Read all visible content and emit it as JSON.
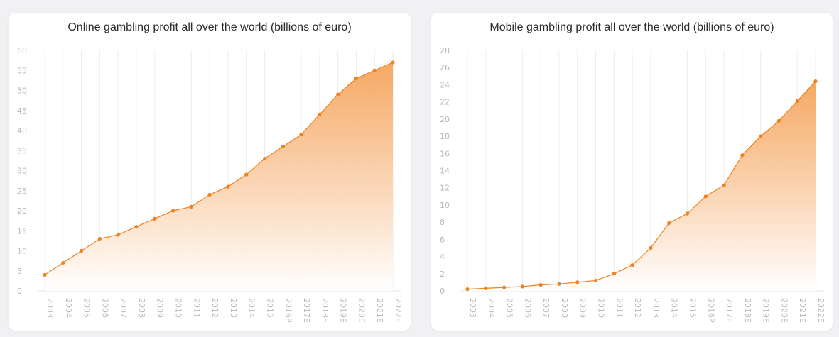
{
  "colors": {
    "accent": "#f0821e",
    "fill_top": "#f5a45c",
    "fill_bottom": "#ffffff"
  },
  "chart_data": [
    {
      "type": "area",
      "title": "Online gambling profit all over the world (billions of euro)",
      "xlabel": "",
      "ylabel": "",
      "categories": [
        "2003",
        "2004",
        "2005",
        "2006",
        "2007",
        "2008",
        "2009",
        "2010",
        "2011",
        "2012",
        "2013",
        "2014",
        "2015",
        "2016P",
        "2017E",
        "2018E",
        "2019E",
        "2020E",
        "2021E",
        "2022E"
      ],
      "values": [
        4,
        7,
        10,
        13,
        14,
        16,
        18,
        20,
        21,
        24,
        26,
        29,
        33,
        36,
        39,
        44,
        49,
        53,
        55,
        57
      ],
      "ylim": [
        0,
        60
      ],
      "yticks": [
        "0",
        "5",
        "10",
        "15",
        "20",
        "25",
        "30",
        "35",
        "40",
        "45",
        "50",
        "55",
        "60"
      ],
      "grid": "vertical"
    },
    {
      "type": "area",
      "title": "Mobile gambling profit all over the world (billions of euro)",
      "xlabel": "",
      "ylabel": "",
      "categories": [
        "2003",
        "2004",
        "2005",
        "2006",
        "2007",
        "2008",
        "2009",
        "2010",
        "2011",
        "2012",
        "2013",
        "2014",
        "2015",
        "2016P",
        "2017E",
        "2018E",
        "2019E",
        "2020E",
        "2021E",
        "2022E"
      ],
      "values": [
        0.2,
        0.3,
        0.4,
        0.5,
        0.7,
        0.8,
        1.0,
        1.2,
        2.0,
        3.0,
        5.0,
        7.9,
        9.0,
        11.0,
        12.3,
        15.8,
        18.0,
        19.8,
        22.1,
        24.4
      ],
      "ylim": [
        0,
        28
      ],
      "yticks": [
        "0",
        "2",
        "4",
        "6",
        "8",
        "10",
        "12",
        "14",
        "16",
        "18",
        "20",
        "22",
        "24",
        "26",
        "28"
      ],
      "grid": "vertical"
    }
  ]
}
